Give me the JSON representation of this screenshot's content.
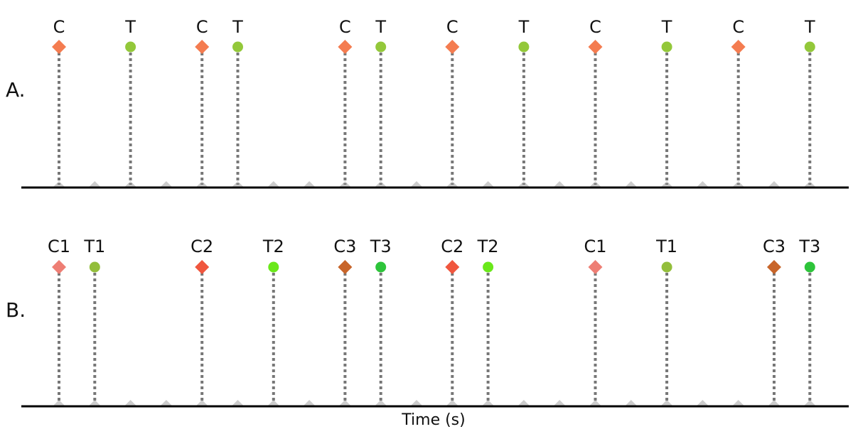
{
  "colors": {
    "stem": "#777777",
    "axis": "#000000",
    "tick": "#cccccc",
    "C": "#f47c50",
    "T": "#93c83a",
    "C1": "#ee7e74",
    "C2": "#f0563e",
    "C3": "#c8652a",
    "T1": "#93be3b",
    "T2": "#6ae81a",
    "T3": "#2dc43a"
  },
  "chart_data": {
    "type": "scatter",
    "xlabel": "Time (s)",
    "ylabel": "",
    "xlim": [
      -1,
      21
    ],
    "tick_positions": [
      0,
      1,
      2,
      3,
      4,
      5,
      6,
      7,
      8,
      9,
      10,
      11,
      12,
      13,
      14,
      15,
      16,
      17,
      18,
      19,
      20,
      21
    ],
    "panels": [
      {
        "label": "A.",
        "events": [
          {
            "label": "C",
            "t": 0,
            "marker": "diamond",
            "color_key": "C"
          },
          {
            "label": "T",
            "t": 2,
            "marker": "circle",
            "color_key": "T"
          },
          {
            "label": "C",
            "t": 4,
            "marker": "diamond",
            "color_key": "C"
          },
          {
            "label": "T",
            "t": 5,
            "marker": "circle",
            "color_key": "T"
          },
          {
            "label": "C",
            "t": 8,
            "marker": "diamond",
            "color_key": "C"
          },
          {
            "label": "T",
            "t": 9,
            "marker": "circle",
            "color_key": "T"
          },
          {
            "label": "C",
            "t": 11,
            "marker": "diamond",
            "color_key": "C"
          },
          {
            "label": "T",
            "t": 13,
            "marker": "circle",
            "color_key": "T"
          },
          {
            "label": "C",
            "t": 15,
            "marker": "diamond",
            "color_key": "C"
          },
          {
            "label": "T",
            "t": 17,
            "marker": "circle",
            "color_key": "T"
          },
          {
            "label": "C",
            "t": 19,
            "marker": "diamond",
            "color_key": "C"
          },
          {
            "label": "T",
            "t": 21,
            "marker": "circle",
            "color_key": "T"
          }
        ]
      },
      {
        "label": "B.",
        "events": [
          {
            "label": "C1",
            "t": 0,
            "marker": "diamond",
            "color_key": "C1"
          },
          {
            "label": "T1",
            "t": 1,
            "marker": "circle",
            "color_key": "T1"
          },
          {
            "label": "C2",
            "t": 4,
            "marker": "diamond",
            "color_key": "C2"
          },
          {
            "label": "T2",
            "t": 6,
            "marker": "circle",
            "color_key": "T2"
          },
          {
            "label": "C3",
            "t": 8,
            "marker": "diamond",
            "color_key": "C3"
          },
          {
            "label": "T3",
            "t": 9,
            "marker": "circle",
            "color_key": "T3"
          },
          {
            "label": "C2",
            "t": 11,
            "marker": "diamond",
            "color_key": "C2"
          },
          {
            "label": "T2",
            "t": 12,
            "marker": "circle",
            "color_key": "T2"
          },
          {
            "label": "C1",
            "t": 15,
            "marker": "diamond",
            "color_key": "C1"
          },
          {
            "label": "T1",
            "t": 17,
            "marker": "circle",
            "color_key": "T1"
          },
          {
            "label": "C3",
            "t": 20,
            "marker": "diamond",
            "color_key": "C3"
          },
          {
            "label": "T3",
            "t": 21,
            "marker": "circle",
            "color_key": "T3"
          }
        ]
      }
    ]
  }
}
